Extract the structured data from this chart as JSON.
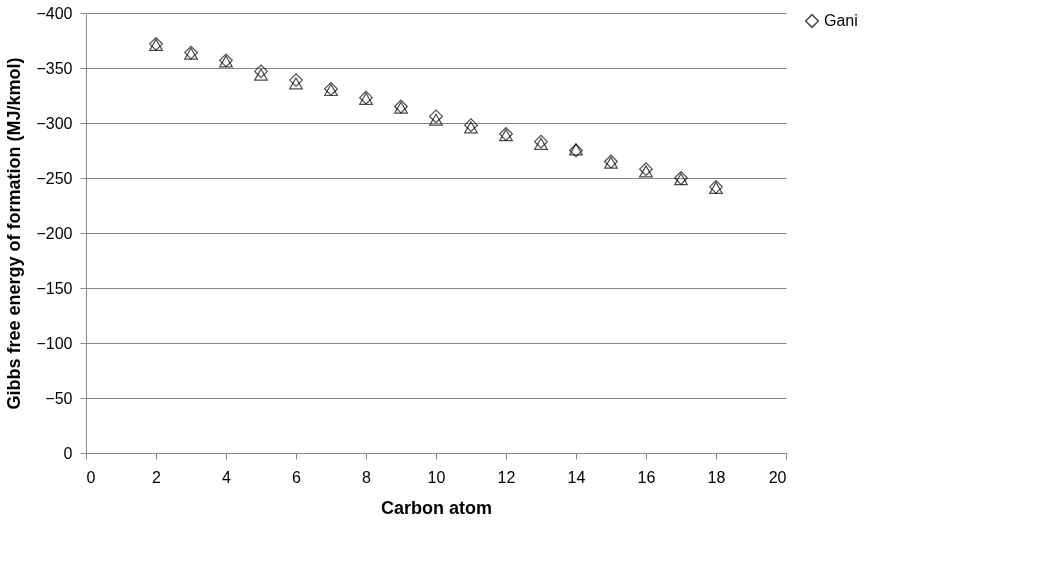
{
  "chart_data": {
    "type": "scatter",
    "xlabel": "Carbon atom",
    "ylabel": "Gibbs free energy of formation (MJ/kmol)",
    "x": [
      2,
      3,
      4,
      5,
      6,
      7,
      8,
      9,
      10,
      11,
      12,
      13,
      14,
      15,
      16,
      17,
      18
    ],
    "series": [
      {
        "name": "Gani",
        "color": "#000000",
        "marker": "diamond",
        "values": [
          -372,
          -364,
          -357,
          -347,
          -339,
          -331,
          -323,
          -315,
          -306,
          -298,
          -290,
          -283,
          -275,
          -265,
          -258,
          -250,
          -242
        ]
      },
      {
        "color": "#000000",
        "marker": "triangle",
        "values": [
          -371,
          -363,
          -356,
          -344,
          -336,
          -330,
          -322,
          -314,
          -303,
          -296,
          -289,
          -281,
          -276,
          -264,
          -256,
          -249,
          -241
        ]
      }
    ],
    "xlim": [
      0,
      20
    ],
    "xticks": [
      0,
      2,
      4,
      6,
      8,
      10,
      12,
      14,
      16,
      18,
      20
    ],
    "ylim": [
      0,
      -400
    ],
    "yticks": [
      0,
      -50,
      -100,
      -150,
      -200,
      -250,
      -300,
      -350,
      -400
    ],
    "grid": "y",
    "legend": "right"
  }
}
